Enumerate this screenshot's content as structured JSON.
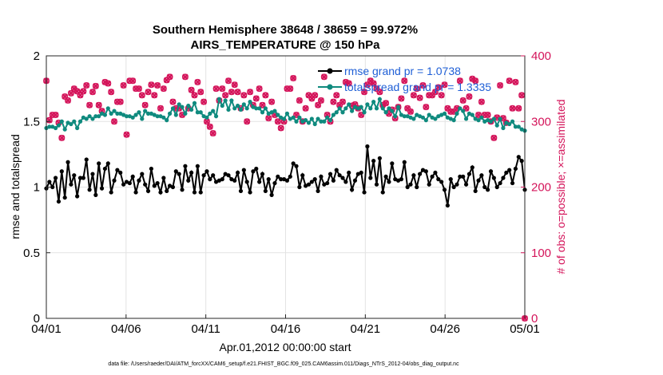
{
  "chart_data": {
    "type": "line",
    "title": "Southern Hemisphere 38648 / 38659 = 99.972%",
    "subtitle": "AIRS_TEMPERATURE @ 150 hPa",
    "xlabel": "Apr.01,2012 00:00:00 start",
    "ylabel": "rmse and totalspread",
    "ylabel_right": "# of obs: o=possible; ×=assimilated",
    "footnote": "data file: /Users/raeder/DAI/ATM_forcXX/CAM6_setup/f.e21.FHIST_BGC.f09_025.CAM6assim.011/Diags_NTrS_2012-04/obs_diag_output.nc",
    "x_ticks": [
      "04/01",
      "04/06",
      "04/11",
      "04/16",
      "04/21",
      "04/26",
      "05/01"
    ],
    "x_range_days": [
      0,
      30
    ],
    "y_ticks": [
      "0",
      "0.5",
      "1",
      "1.5",
      "2"
    ],
    "ylim": [
      0,
      2
    ],
    "y2_ticks": [
      "0",
      "100",
      "200",
      "300",
      "400"
    ],
    "y2lim": [
      0,
      400
    ],
    "grid": true,
    "legend_position": "top-right",
    "colors": {
      "rmse": "#000000",
      "spread": "#0f8a7e",
      "obs": "#d4145a",
      "legend_text": "#1f5fd6"
    },
    "series": [
      {
        "name": "rmse grand pr = 1.0738",
        "axis": "left",
        "values": [
          0.99,
          1.04,
          1.0,
          1.07,
          0.89,
          1.12,
          0.92,
          1.19,
          1.02,
          1.09,
          0.93,
          1.07,
          1.07,
          1.21,
          0.98,
          1.1,
          0.94,
          1.18,
          0.99,
          1.14,
          1.18,
          0.96,
          1.05,
          1.13,
          1.11,
          1.02,
          1.04,
          1.03,
          1.08,
          0.96,
          1.05,
          1.1,
          1.02,
          0.97,
          1.14,
          1.01,
          1.03,
          0.96,
          1.07,
          0.97,
          1.01,
          1.0,
          1.12,
          1.1,
          0.98,
          1.16,
          1.05,
          1.11,
          0.96,
          1.16,
          0.96,
          1.09,
          1.12,
          1.06,
          1.09,
          1.04,
          1.05,
          1.06,
          1.1,
          1.09,
          1.06,
          1.05,
          1.11,
          0.97,
          1.13,
          1.04,
          0.96,
          1.12,
          1.14,
          1.04,
          1.1,
          0.97,
          1.06,
          0.94,
          1.03,
          1.08,
          1.06,
          1.06,
          1.05,
          1.08,
          1.18,
          1.16,
          1.0,
          1.09,
          1.01,
          1.02,
          1.04,
          1.06,
          0.97,
          1.08,
          1.02,
          1.03,
          1.1,
          1.05,
          1.13,
          1.09,
          1.07,
          1.04,
          1.11,
          0.98,
          1.05,
          1.1,
          1.11,
          0.96,
          1.31,
          1.07,
          1.2,
          1.02,
          1.22,
          0.96,
          1.08,
          1.04,
          1.18,
          1.06,
          1.05,
          1.06,
          1.19,
          1.0,
          1.02,
          1.09,
          1.0,
          1.1,
          1.13,
          1.12,
          1.02,
          1.08,
          1.11,
          1.06,
          1.04,
          0.98,
          0.86,
          1.06,
          1.0,
          1.02,
          1.08,
          1.08,
          1.02,
          1.1,
          1.15,
          0.97,
          1.05,
          1.09,
          1.0,
          0.98,
          1.12,
          1.07,
          1.0,
          1.03,
          1.07,
          1.11,
          1.13,
          1.03,
          1.14,
          1.23,
          1.2,
          0.98
        ]
      },
      {
        "name": "totalspread grand pr = 1.3335",
        "axis": "left",
        "values": [
          1.45,
          1.46,
          1.46,
          1.45,
          1.47,
          1.5,
          1.44,
          1.49,
          1.48,
          1.5,
          1.45,
          1.5,
          1.53,
          1.52,
          1.54,
          1.52,
          1.54,
          1.54,
          1.56,
          1.55,
          1.6,
          1.56,
          1.58,
          1.56,
          1.56,
          1.55,
          1.54,
          1.54,
          1.53,
          1.55,
          1.57,
          1.52,
          1.58,
          1.56,
          1.56,
          1.55,
          1.54,
          1.54,
          1.53,
          1.51,
          1.56,
          1.6,
          1.55,
          1.63,
          1.61,
          1.56,
          1.62,
          1.59,
          1.64,
          1.57,
          1.57,
          1.54,
          1.53,
          1.56,
          1.58,
          1.54,
          1.67,
          1.62,
          1.66,
          1.59,
          1.66,
          1.6,
          1.62,
          1.59,
          1.63,
          1.6,
          1.65,
          1.61,
          1.6,
          1.6,
          1.57,
          1.6,
          1.56,
          1.57,
          1.58,
          1.55,
          1.53,
          1.52,
          1.56,
          1.52,
          1.53,
          1.5,
          1.53,
          1.5,
          1.51,
          1.49,
          1.52,
          1.48,
          1.52,
          1.5,
          1.5,
          1.53,
          1.51,
          1.55,
          1.57,
          1.6,
          1.57,
          1.6,
          1.63,
          1.58,
          1.61,
          1.6,
          1.61,
          1.57,
          1.63,
          1.6,
          1.65,
          1.6,
          1.67,
          1.6,
          1.57,
          1.6,
          1.58,
          1.54,
          1.61,
          1.55,
          1.54,
          1.54,
          1.53,
          1.52,
          1.55,
          1.54,
          1.53,
          1.51,
          1.55,
          1.53,
          1.52,
          1.54,
          1.55,
          1.56,
          1.53,
          1.52,
          1.51,
          1.56,
          1.6,
          1.58,
          1.52,
          1.56,
          1.55,
          1.52,
          1.51,
          1.53,
          1.5,
          1.51,
          1.5,
          1.52,
          1.47,
          1.52,
          1.45,
          1.49,
          1.48,
          1.5,
          1.46,
          1.46,
          1.44,
          1.43
        ]
      },
      {
        "name": "obs possible",
        "axis": "right",
        "values": [
          362,
          302,
          310,
          310,
          298,
          275,
          338,
          332,
          343,
          350,
          346,
          340,
          346,
          355,
          325,
          345,
          354,
          325,
          316,
          360,
          358,
          345,
          300,
          330,
          330,
          355,
          280,
          362,
          362,
          350,
          350,
          340,
          325,
          345,
          356,
          340,
          355,
          320,
          350,
          363,
          368,
          330,
          320,
          320,
          310,
          368,
          320,
          348,
          340,
          360,
          345,
          330,
          300,
          292,
          282,
          350,
          332,
          350,
          340,
          362,
          345,
          356,
          345,
          320,
          340,
          300,
          345,
          325,
          335,
          350,
          325,
          340,
          305,
          330,
          310,
          300,
          290,
          300,
          350,
          350,
          366,
          310,
          332,
          300,
          320,
          340,
          335,
          340,
          325,
          332,
          368,
          310,
          300,
          330,
          340,
          325,
          330,
          360,
          358,
          324,
          326,
          320,
          310,
          345,
          356,
          362,
          358,
          350,
          345,
          325,
          328,
          312,
          318,
          305,
          322,
          335,
          362,
          320,
          315,
          340,
          350,
          336,
          355,
          322,
          340,
          340,
          345,
          352,
          340,
          356,
          320,
          315,
          315,
          320,
          362,
          332,
          320,
          338,
          365,
          362,
          310,
          330,
          310,
          310,
          300,
          275,
          306,
          355,
          305,
          298,
          362,
          320,
          360,
          320,
          340,
          0
        ]
      },
      {
        "name": "obs assimilated",
        "axis": "right",
        "values": [
          362,
          302,
          310,
          310,
          298,
          275,
          338,
          332,
          343,
          350,
          346,
          340,
          346,
          355,
          325,
          345,
          354,
          325,
          316,
          360,
          358,
          345,
          300,
          330,
          330,
          355,
          280,
          362,
          362,
          350,
          350,
          340,
          325,
          345,
          356,
          340,
          355,
          320,
          350,
          363,
          368,
          330,
          320,
          320,
          310,
          368,
          320,
          348,
          340,
          360,
          345,
          330,
          300,
          292,
          282,
          350,
          332,
          350,
          340,
          362,
          345,
          356,
          345,
          320,
          340,
          300,
          345,
          325,
          335,
          350,
          325,
          340,
          305,
          330,
          310,
          300,
          290,
          300,
          350,
          350,
          366,
          310,
          332,
          300,
          320,
          340,
          335,
          340,
          325,
          332,
          368,
          310,
          300,
          330,
          340,
          325,
          330,
          360,
          358,
          324,
          326,
          320,
          310,
          345,
          356,
          362,
          358,
          350,
          345,
          325,
          328,
          312,
          318,
          305,
          322,
          335,
          362,
          320,
          315,
          340,
          350,
          336,
          355,
          322,
          340,
          340,
          345,
          352,
          340,
          356,
          320,
          315,
          315,
          320,
          362,
          332,
          320,
          338,
          365,
          362,
          310,
          330,
          310,
          310,
          300,
          275,
          306,
          355,
          305,
          298,
          362,
          320,
          360,
          320,
          340,
          0
        ]
      }
    ]
  }
}
